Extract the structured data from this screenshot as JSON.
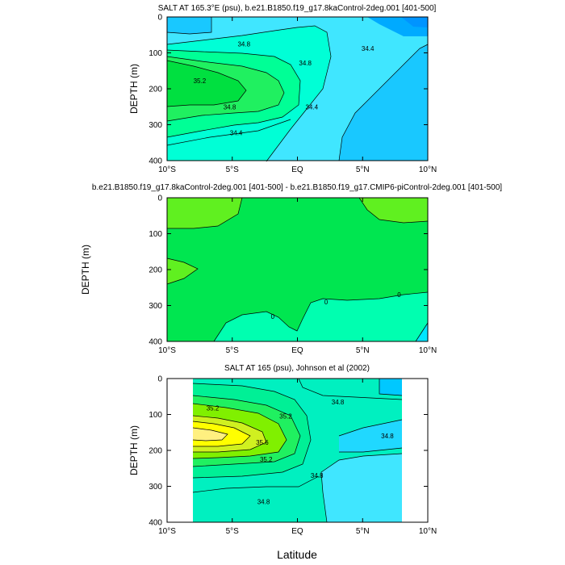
{
  "chart_data": [
    {
      "type": "contour",
      "title": "SALT AT 165.3°E (psu), b.e21.B1850.f19_g17.8kaControl-2deg.001 [401-500]",
      "ylabel": "DEPTH (m)",
      "xlabel": "",
      "x_ticks": [
        "10°S",
        "5°S",
        "EQ",
        "5°N",
        "10°N"
      ],
      "y_ticks": [
        "0",
        "100",
        "200",
        "300",
        "400"
      ],
      "xlim": [
        -10,
        10
      ],
      "ylim": [
        400,
        0
      ],
      "contour_labels": [
        {
          "text": "34.8",
          "x": -4.1,
          "y": 75
        },
        {
          "text": "35.2",
          "x": -7.5,
          "y": 178
        },
        {
          "text": "34.8",
          "x": -5.2,
          "y": 250
        },
        {
          "text": "34.4",
          "x": -4.7,
          "y": 322
        },
        {
          "text": "34.8",
          "x": 0.6,
          "y": 128
        },
        {
          "text": "34.4",
          "x": 1.1,
          "y": 250
        },
        {
          "text": "34.4",
          "x": 5.4,
          "y": 88
        }
      ]
    },
    {
      "type": "contour",
      "title": "b.e21.B1850.f19_g17.8kaControl-2deg.001 [401-500] - b.e21.B1850.f19_g17.CMIP6-piControl-2deg.001 [401-500]",
      "ylabel": "DEPTH (m)",
      "xlabel": "",
      "x_ticks": [
        "10°S",
        "5°S",
        "EQ",
        "5°N",
        "10°N"
      ],
      "y_ticks": [
        "0",
        "100",
        "200",
        "300",
        "400"
      ],
      "xlim": [
        -10,
        10
      ],
      "ylim": [
        400,
        0
      ],
      "contour_labels": [
        {
          "text": "0",
          "x": -1.9,
          "y": 330
        },
        {
          "text": "0",
          "x": 2.2,
          "y": 290
        },
        {
          "text": "0",
          "x": 7.8,
          "y": 270
        }
      ]
    },
    {
      "type": "contour",
      "title": "SALT AT 165 (psu), Johnson et al (2002)",
      "ylabel": "DEPTH (m)",
      "xlabel": "Latitude",
      "x_ticks": [
        "10°S",
        "5°S",
        "EQ",
        "5°N",
        "10°N"
      ],
      "y_ticks": [
        "0",
        "100",
        "200",
        "300",
        "400"
      ],
      "xlim": [
        -10,
        10
      ],
      "ylim": [
        400,
        0
      ],
      "data_x_range": [
        -8,
        8
      ],
      "contour_labels": [
        {
          "text": "35.2",
          "x": -6.5,
          "y": 82
        },
        {
          "text": "35.2",
          "x": -0.9,
          "y": 105
        },
        {
          "text": "34.8",
          "x": 3.1,
          "y": 65
        },
        {
          "text": "35.6",
          "x": -2.7,
          "y": 178
        },
        {
          "text": "35.2",
          "x": -2.4,
          "y": 225
        },
        {
          "text": "34.8",
          "x": 6.9,
          "y": 160
        },
        {
          "text": "34.8",
          "x": 1.5,
          "y": 270
        },
        {
          "text": "34.8",
          "x": -2.6,
          "y": 343
        }
      ]
    }
  ]
}
